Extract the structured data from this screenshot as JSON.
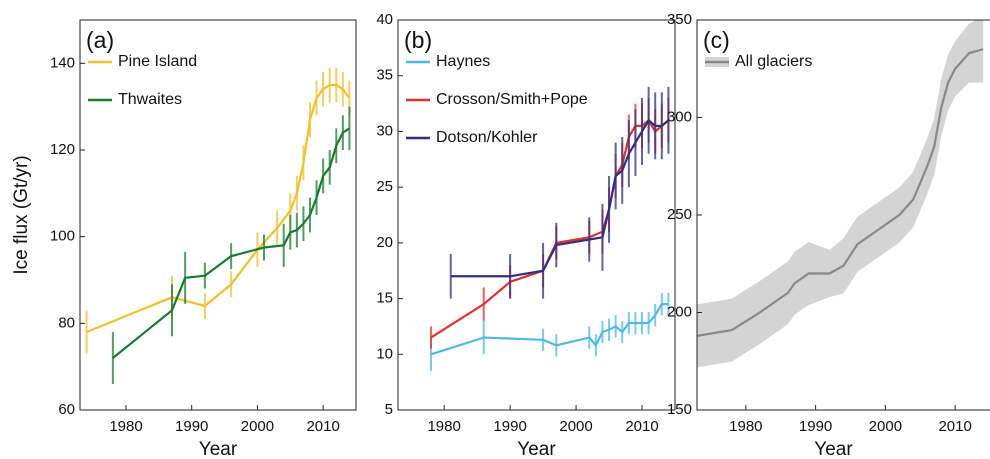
{
  "chart_data": [
    {
      "type": "line",
      "label": "(a)",
      "xlabel": "Year",
      "ylabel": "Ice flux (Gt/yr)",
      "xlim": [
        1973,
        2015
      ],
      "xticks": [
        1980,
        1990,
        2000,
        2010
      ],
      "ylim": [
        60,
        150
      ],
      "yticks": [
        60,
        80,
        100,
        120,
        140
      ],
      "series": [
        {
          "name": "Pine Island",
          "color": "#f0c030",
          "x": [
            1974,
            1987,
            1992,
            1996,
            2000,
            2003,
            2005,
            2006,
            2007,
            2008,
            2009,
            2010,
            2011,
            2012,
            2013,
            2014
          ],
          "values": [
            78,
            86,
            84,
            89,
            97,
            102,
            106,
            110,
            117,
            127,
            132,
            134,
            135,
            135,
            134,
            132
          ],
          "errors": [
            5,
            5,
            3,
            3,
            4,
            4,
            4,
            4,
            4,
            4,
            4,
            4,
            4,
            4,
            4,
            4
          ]
        },
        {
          "name": "Thwaites",
          "color": "#1a7a30",
          "x": [
            1978,
            1987,
            1989,
            1992,
            1996,
            2001,
            2004,
            2005,
            2006,
            2007,
            2008,
            2009,
            2010,
            2011,
            2012,
            2013,
            2014
          ],
          "values": [
            72,
            83,
            90.5,
            91,
            95.5,
            97.5,
            98,
            101,
            101.5,
            103,
            105,
            109,
            114,
            116,
            121,
            124,
            125
          ],
          "errors": [
            6,
            6,
            6,
            3,
            3,
            3,
            5,
            4,
            4,
            4,
            4,
            4,
            4,
            4,
            4,
            4,
            5
          ]
        }
      ]
    },
    {
      "type": "line",
      "label": "(b)",
      "xlabel": "Year",
      "xlim": [
        1973,
        2015
      ],
      "xticks": [
        1980,
        1990,
        2000,
        2010
      ],
      "ylim": [
        5,
        40
      ],
      "yticks": [
        5,
        10,
        15,
        20,
        25,
        30,
        35,
        40
      ],
      "series": [
        {
          "name": "Haynes",
          "color": "#4fb8e8",
          "x": [
            1978,
            1986,
            1995,
            1997,
            2002,
            2003,
            2004,
            2005,
            2006,
            2007,
            2008,
            2009,
            2010,
            2011,
            2012,
            2013,
            2014
          ],
          "values": [
            10,
            11.5,
            11.3,
            10.8,
            11.5,
            10.8,
            12,
            12.2,
            12.5,
            12,
            12.8,
            12.8,
            12.8,
            12.8,
            13.5,
            14.5,
            14.5
          ],
          "errors": [
            1.5,
            1.5,
            1,
            1,
            1,
            1,
            1,
            1,
            1,
            1,
            1,
            1,
            1,
            1,
            1,
            1,
            1
          ]
        },
        {
          "name": "Crosson/Smith+Pope",
          "color": "#e03030",
          "x": [
            1978,
            1986,
            1990,
            1995,
            1997,
            2002,
            2004,
            2005,
            2006,
            2007,
            2008,
            2009,
            2010,
            2011,
            2012,
            2013,
            2014
          ],
          "values": [
            11.5,
            14.5,
            16.5,
            17.5,
            20,
            20.5,
            21,
            23,
            26,
            27,
            29.5,
            30.5,
            30.5,
            31,
            30,
            30.5,
            31
          ],
          "errors": [
            1,
            1.5,
            1.5,
            1.5,
            1.5,
            1.5,
            2,
            2,
            2,
            2,
            2,
            2,
            2,
            2,
            2,
            2,
            2
          ]
        },
        {
          "name": "Dotson/Kohler",
          "color": "#303080",
          "x": [
            1981,
            1990,
            1995,
            1997,
            2002,
            2004,
            2005,
            2006,
            2007,
            2008,
            2009,
            2010,
            2011,
            2012,
            2013,
            2014
          ],
          "values": [
            17,
            17,
            17.5,
            19.8,
            20.3,
            20.5,
            23,
            26,
            26.5,
            28,
            29,
            30,
            31,
            30.5,
            30.5,
            31
          ],
          "errors": [
            2,
            2,
            2.5,
            2,
            2,
            3,
            3,
            3,
            3,
            3,
            3,
            3,
            3,
            3,
            3,
            3
          ]
        }
      ]
    },
    {
      "type": "line",
      "label": "(c)",
      "xlabel": "Year",
      "xlim": [
        1973,
        2016
      ],
      "xticks": [
        1980,
        1990,
        2000,
        2010
      ],
      "ylim": [
        150,
        350
      ],
      "yticks": [
        150,
        200,
        250,
        300,
        350
      ],
      "series": [
        {
          "name": "All glaciers",
          "color": "#888888",
          "band_color": "#d4d4d4",
          "x": [
            1973,
            1978,
            1982,
            1986,
            1987,
            1989,
            1992,
            1994,
            1996,
            1998,
            2000,
            2002,
            2004,
            2006,
            2007,
            2008,
            2009,
            2010,
            2012,
            2014
          ],
          "values": [
            188,
            191,
            200,
            210,
            215,
            220,
            220,
            224,
            235,
            240,
            245,
            250,
            258,
            275,
            285,
            305,
            318,
            325,
            333,
            335
          ],
          "errors": [
            16,
            16,
            16,
            16,
            16,
            16,
            12,
            14,
            14,
            14,
            14,
            14,
            14,
            14,
            14,
            14,
            14,
            14,
            15,
            17
          ]
        }
      ]
    }
  ]
}
